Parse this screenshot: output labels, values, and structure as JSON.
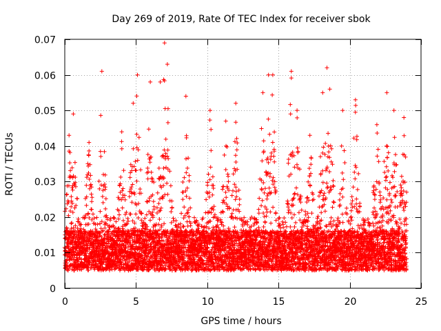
{
  "chart_data": {
    "type": "scatter",
    "title": "Day 269 of 2019, Rate Of TEC Index for receiver sbok",
    "xlabel": "GPS time / hours",
    "ylabel": "ROTI / TECUs",
    "xlim": [
      0,
      25
    ],
    "ylim": [
      0,
      0.07
    ],
    "x_ticks": [
      0,
      5,
      10,
      15,
      20,
      25
    ],
    "x_tick_labels": [
      "0",
      "5",
      "10",
      "15",
      "20",
      "25"
    ],
    "y_ticks": [
      0,
      0.01,
      0.02,
      0.03,
      0.04,
      0.05,
      0.06,
      0.07
    ],
    "y_tick_labels": [
      "0",
      "0.01",
      "0.02",
      "0.03",
      "0.04",
      "0.05",
      "0.06",
      "0.07"
    ],
    "grid": true,
    "marker": "plus",
    "point_color": "#ff0000",
    "series": [
      {
        "name": "ROTI",
        "x_range": [
          0,
          24
        ],
        "typical_range": [
          0.005,
          0.02
        ],
        "typical_level": 0.01,
        "peaks": [
          {
            "x": 0.3,
            "y": 0.043
          },
          {
            "x": 0.6,
            "y": 0.049
          },
          {
            "x": 1.7,
            "y": 0.041
          },
          {
            "x": 2.6,
            "y": 0.061
          },
          {
            "x": 4.0,
            "y": 0.044
          },
          {
            "x": 4.8,
            "y": 0.052
          },
          {
            "x": 5.1,
            "y": 0.06
          },
          {
            "x": 6.0,
            "y": 0.058
          },
          {
            "x": 6.7,
            "y": 0.058
          },
          {
            "x": 7.0,
            "y": 0.069
          },
          {
            "x": 7.2,
            "y": 0.063
          },
          {
            "x": 8.5,
            "y": 0.054
          },
          {
            "x": 10.2,
            "y": 0.05
          },
          {
            "x": 11.3,
            "y": 0.047
          },
          {
            "x": 12.0,
            "y": 0.052
          },
          {
            "x": 13.9,
            "y": 0.055
          },
          {
            "x": 14.3,
            "y": 0.06
          },
          {
            "x": 14.6,
            "y": 0.06
          },
          {
            "x": 15.9,
            "y": 0.061
          },
          {
            "x": 16.3,
            "y": 0.05
          },
          {
            "x": 17.2,
            "y": 0.043
          },
          {
            "x": 18.1,
            "y": 0.055
          },
          {
            "x": 18.4,
            "y": 0.062
          },
          {
            "x": 18.6,
            "y": 0.056
          },
          {
            "x": 19.5,
            "y": 0.05
          },
          {
            "x": 20.4,
            "y": 0.053
          },
          {
            "x": 21.9,
            "y": 0.046
          },
          {
            "x": 22.6,
            "y": 0.055
          },
          {
            "x": 23.1,
            "y": 0.05
          },
          {
            "x": 23.8,
            "y": 0.048
          }
        ]
      }
    ]
  }
}
